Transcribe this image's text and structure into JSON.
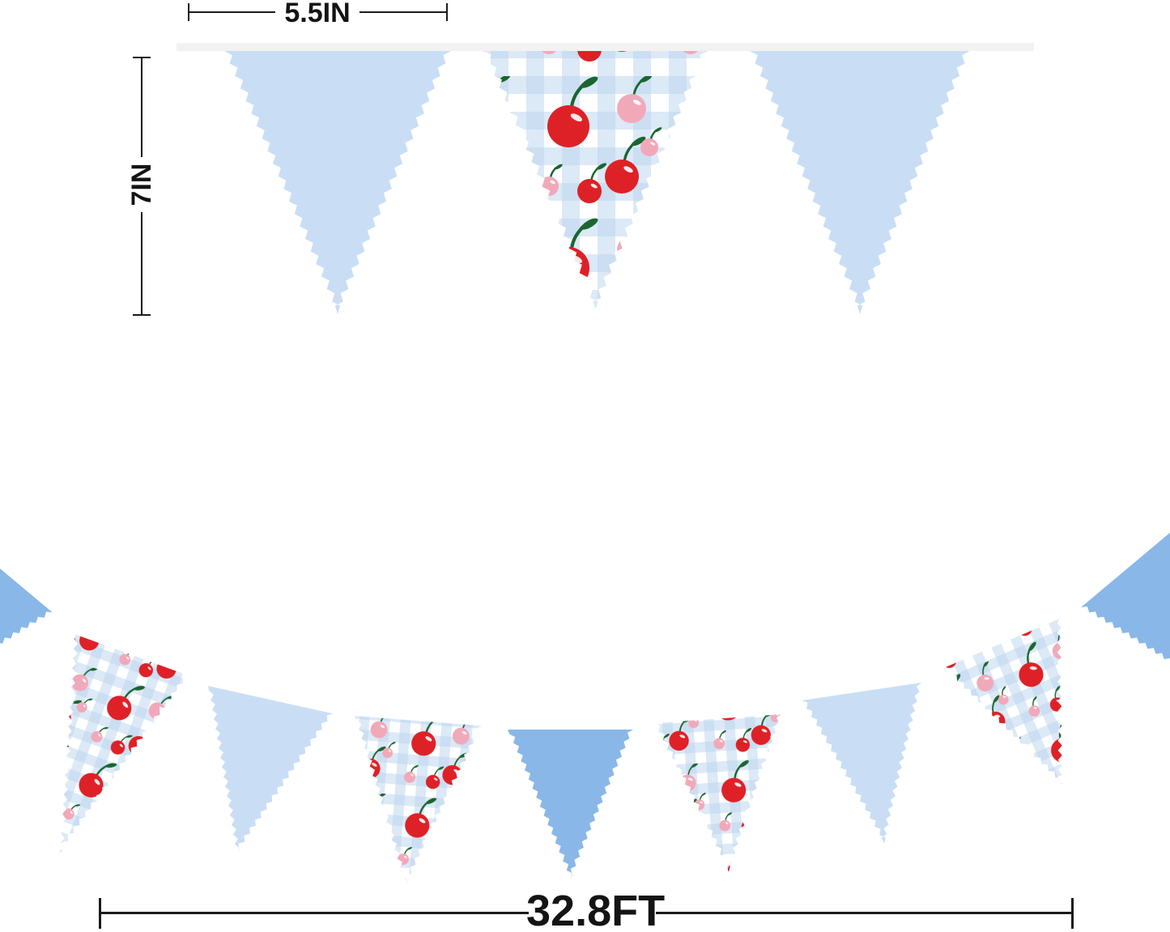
{
  "product": {
    "name": "cherry-gingham-pennant-banner-size-diagram"
  },
  "dimensions": {
    "flag_width": {
      "label": "5.5IN"
    },
    "flag_height": {
      "label": "7IN"
    },
    "banner_length": {
      "label": "32.8FT"
    }
  },
  "colors": {
    "light_blue": "#c9def4",
    "medium_blue": "#89b7e8",
    "gingham_blue": "#b9d3ee",
    "cherry_red": "#de2127",
    "cherry_pink": "#f1a9ba",
    "stem_green": "#1a6631",
    "string_gray": "#f2f2f2",
    "dimension_ink": "#1b1b1b",
    "white": "#ffffff"
  },
  "banner_top": {
    "flags": [
      {
        "type": "solid",
        "color": "light_blue"
      },
      {
        "type": "cherry-gingham"
      },
      {
        "type": "solid",
        "color": "light_blue"
      }
    ]
  },
  "banner_bottom": {
    "flags": [
      {
        "type": "solid",
        "color": "medium_blue"
      },
      {
        "type": "cherry-gingham"
      },
      {
        "type": "solid",
        "color": "light_blue"
      },
      {
        "type": "cherry-gingham"
      },
      {
        "type": "solid",
        "color": "medium_blue"
      },
      {
        "type": "cherry-gingham"
      },
      {
        "type": "solid",
        "color": "light_blue"
      },
      {
        "type": "cherry-gingham"
      },
      {
        "type": "solid",
        "color": "medium_blue"
      }
    ]
  }
}
